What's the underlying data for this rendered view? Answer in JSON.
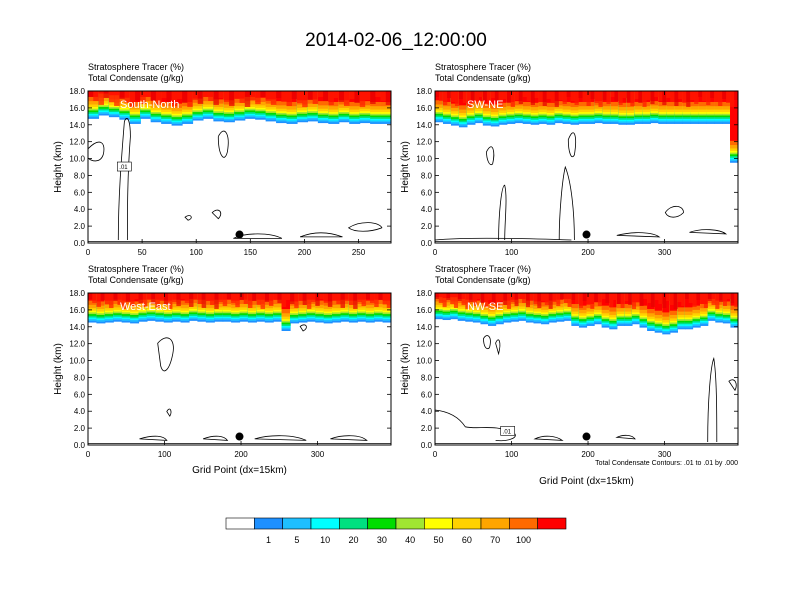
{
  "title": "2014-02-06_12:00:00",
  "colorbar": {
    "colors": [
      "#ffffff",
      "#1e90ff",
      "#1ebfff",
      "#00ffff",
      "#00e080",
      "#00dd00",
      "#a0e632",
      "#ffff00",
      "#ffd200",
      "#ffa500",
      "#ff6a00",
      "#ff0000"
    ],
    "labels": [
      "1",
      "5",
      "10",
      "20",
      "30",
      "40",
      "50",
      "60",
      "70",
      "100"
    ]
  },
  "footnote": "Total Condensate Contours: .01 to .01 by .000",
  "chart_data": [
    {
      "type": "heatmap",
      "panel_label": "South-North",
      "title_line1": "Stratosphere Tracer   (%)",
      "title_line2": "Total Condensate   (g/kg)",
      "xlabel": "",
      "ylabel": "Height (km)",
      "xlim": [
        0,
        280
      ],
      "ylim": [
        0,
        18
      ],
      "xticks": [
        "0",
        "50",
        "100",
        "150",
        "200",
        "250"
      ],
      "yticks": [
        "0.0",
        "2.0",
        "4.0",
        "6.0",
        "8.0",
        "10.0",
        "12.0",
        "14.0",
        "16.0",
        "18.0"
      ],
      "tropopause_km": [
        15.6,
        16.0,
        15.8,
        15.5,
        15.0,
        15.6,
        15.2,
        15.0,
        14.8,
        15.0,
        15.4,
        15.6,
        15.3,
        15.2,
        15.4,
        15.6,
        15.5,
        15.3,
        15.1,
        15.0,
        15.2,
        15.3,
        15.1,
        15.0,
        15.2,
        15.0,
        15.1,
        15.0,
        15.0
      ],
      "marker": {
        "x": 140,
        "y": 1.0
      },
      "contour_label": ".01"
    },
    {
      "type": "heatmap",
      "panel_label": "SW-NE",
      "title_line1": "Stratosphere Tracer   (%)",
      "title_line2": "Total Condensate   (g/kg)",
      "xlabel": "",
      "ylabel": "Height (km)",
      "xlim": [
        0,
        396
      ],
      "ylim": [
        0,
        18
      ],
      "xticks": [
        "0",
        "100",
        "200",
        "300"
      ],
      "yticks": [
        "0.0",
        "2.0",
        "4.0",
        "6.0",
        "8.0",
        "10.0",
        "12.0",
        "14.0",
        "16.0",
        "18.0"
      ],
      "tropopause_km": [
        15.2,
        15.0,
        14.8,
        14.6,
        14.9,
        15.1,
        14.8,
        14.7,
        14.9,
        15.0,
        15.1,
        15.0,
        14.9,
        15.0,
        14.9,
        15.1,
        15.0,
        14.9,
        15.0,
        15.0,
        15.1,
        15.0,
        15.0,
        14.9,
        14.9,
        15.0,
        15.0,
        15.1,
        15.0,
        15.0,
        15.0,
        15.0,
        15.0,
        15.0,
        15.0,
        15.0,
        15.0,
        10.4
      ],
      "marker": {
        "x": 198,
        "y": 1.0
      },
      "contour_label": ""
    },
    {
      "type": "heatmap",
      "panel_label": "West-East",
      "title_line1": "Stratosphere Tracer   (%)",
      "title_line2": "Total Condensate   (g/kg)",
      "xlabel": "Grid Point (dx=15km)",
      "ylabel": "Height (km)",
      "xlim": [
        0,
        396
      ],
      "ylim": [
        0,
        18
      ],
      "xticks": [
        "0",
        "100",
        "200",
        "300"
      ],
      "yticks": [
        "0.0",
        "2.0",
        "4.0",
        "6.0",
        "8.0",
        "10.0",
        "12.0",
        "14.0",
        "16.0",
        "18.0"
      ],
      "tropopause_km": [
        15.4,
        15.3,
        15.4,
        15.5,
        15.4,
        15.3,
        15.5,
        15.6,
        15.5,
        15.4,
        15.5,
        15.4,
        15.6,
        15.5,
        15.4,
        15.5,
        15.5,
        15.4,
        15.5,
        15.4,
        15.5,
        15.4,
        15.5,
        14.4,
        15.3,
        15.4,
        15.5,
        15.4,
        15.3,
        15.4,
        15.5,
        15.4,
        15.5,
        15.4,
        15.5,
        15.4
      ],
      "marker": {
        "x": 198,
        "y": 1.0
      },
      "contour_label": ""
    },
    {
      "type": "heatmap",
      "panel_label": "NW-SE",
      "title_line1": "Stratosphere Tracer   (%)",
      "title_line2": "Total Condensate   (g/kg)",
      "xlabel": "Grid Point (dx=15km)",
      "ylabel": "Height (km)",
      "xlim": [
        0,
        396
      ],
      "ylim": [
        0,
        18
      ],
      "xticks": [
        "0",
        "100",
        "200",
        "300"
      ],
      "yticks": [
        "0.0",
        "2.0",
        "4.0",
        "6.0",
        "8.0",
        "10.0",
        "12.0",
        "14.0",
        "16.0",
        "18.0"
      ],
      "tropopause_km": [
        15.8,
        15.7,
        15.8,
        15.6,
        15.5,
        15.4,
        15.2,
        15.0,
        15.2,
        15.4,
        15.5,
        15.6,
        15.4,
        15.3,
        15.2,
        15.4,
        15.5,
        15.6,
        15.0,
        14.8,
        15.0,
        15.2,
        14.8,
        14.6,
        15.0,
        15.0,
        15.2,
        14.8,
        14.4,
        14.2,
        14.0,
        14.2,
        14.6,
        14.6,
        14.8,
        15.0,
        15.6,
        15.4,
        15.3,
        14.8
      ],
      "marker": {
        "x": 198,
        "y": 1.0
      },
      "contour_label": ".01"
    }
  ]
}
